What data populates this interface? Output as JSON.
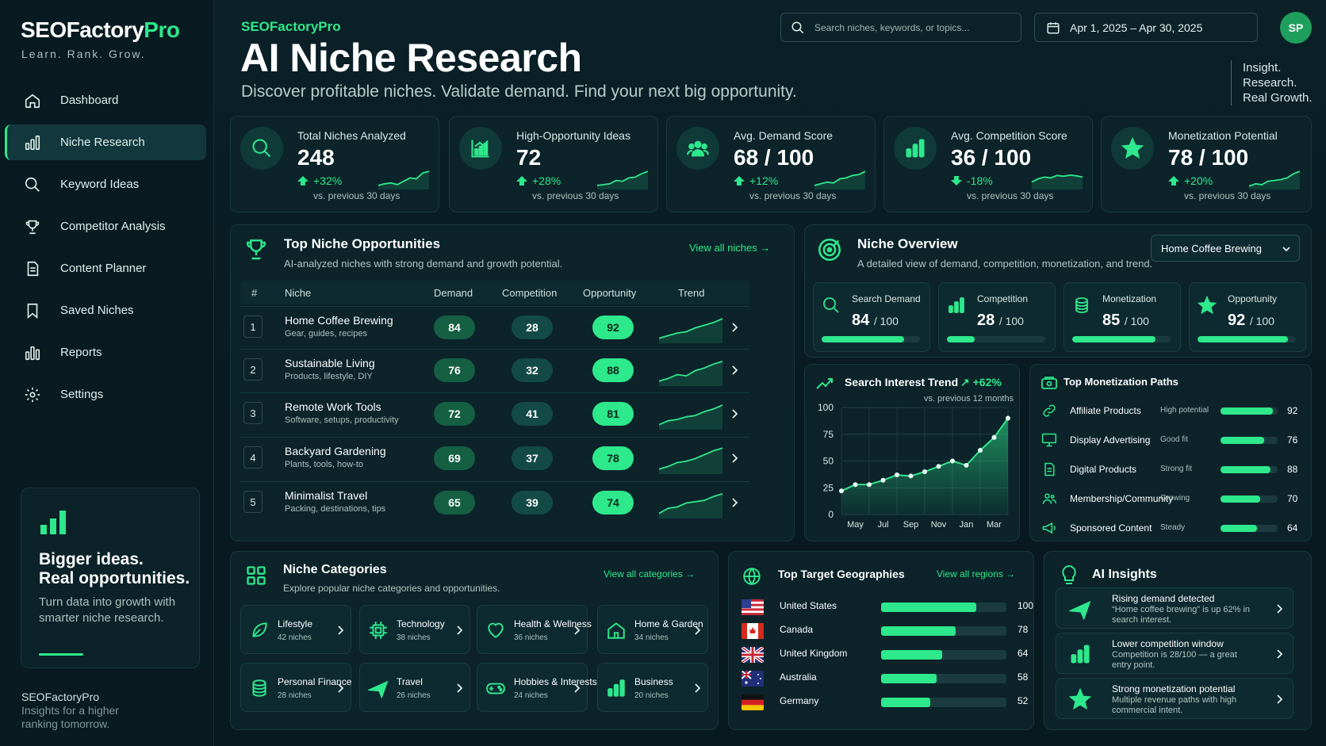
{
  "brand": {
    "name_main": "SEOFactory",
    "name_accent": "Pro",
    "tagline": "Learn. Rank. Grow."
  },
  "nav": [
    {
      "label": "Dashboard",
      "icon": "home-icon"
    },
    {
      "label": "Niche Research",
      "icon": "bar-chart-icon",
      "active": true
    },
    {
      "label": "Keyword Ideas",
      "icon": "search-icon"
    },
    {
      "label": "Competitor Analysis",
      "icon": "trophy-icon"
    },
    {
      "label": "Content Planner",
      "icon": "document-icon"
    },
    {
      "label": "Saved Niches",
      "icon": "bookmark-icon"
    },
    {
      "label": "Reports",
      "icon": "reports-icon"
    },
    {
      "label": "Settings",
      "icon": "gear-icon"
    }
  ],
  "promo": {
    "title_line1": "Bigger ideas.",
    "title_line2": "Real opportunities.",
    "text": "Turn data into growth with smarter niche research."
  },
  "sidebar_footer": {
    "name": "SEOFactoryPro",
    "line1": "Insights for a higher",
    "line2": "ranking tomorrow."
  },
  "header": {
    "brand": "SEOFactoryPro",
    "title": "AI Niche Research",
    "subtitle": "Discover profitable niches. Validate demand. Find your next big opportunity.",
    "search_placeholder": "Search niches, keywords, or topics...",
    "date_range": "Apr 1, 2025 – Apr 30, 2025",
    "avatar": "SP",
    "motto": [
      "Insight.",
      "Research.",
      "Real Growth."
    ]
  },
  "kpis": [
    {
      "label": "Total Niches Analyzed",
      "value": "248",
      "change": "+32%",
      "direction": "up",
      "note": "vs. previous 30 days",
      "icon": "search-icon"
    },
    {
      "label": "High-Opportunity Ideas",
      "value": "72",
      "change": "+28%",
      "direction": "up",
      "note": "vs. previous 30 days",
      "icon": "growth-chart-icon"
    },
    {
      "label": "Avg. Demand Score",
      "value": "68 / 100",
      "change": "+12%",
      "direction": "up",
      "note": "vs. previous 30 days",
      "icon": "users-icon"
    },
    {
      "label": "Avg. Competition Score",
      "value": "36 / 100",
      "change": "-18%",
      "direction": "down",
      "note": "vs. previous 30 days",
      "icon": "bar-chart-icon"
    },
    {
      "label": "Monetization Potential",
      "value": "78 / 100",
      "change": "+20%",
      "direction": "up",
      "note": "vs. previous 30 days",
      "icon": "star-icon"
    }
  ],
  "top_niches": {
    "title": "Top Niche Opportunities",
    "subtitle": "AI-analyzed niches with strong demand and growth potential.",
    "link": "View all niches",
    "columns": [
      "#",
      "Niche",
      "Demand",
      "Competition",
      "Opportunity",
      "Trend"
    ],
    "rows": [
      {
        "rank": "1",
        "name": "Home Coffee Brewing",
        "desc": "Gear, guides, recipes",
        "demand": "84",
        "competition": "28",
        "opportunity": "92"
      },
      {
        "rank": "2",
        "name": "Sustainable Living",
        "desc": "Products, lifestyle, DIY",
        "demand": "76",
        "competition": "32",
        "opportunity": "88"
      },
      {
        "rank": "3",
        "name": "Remote Work Tools",
        "desc": "Software, setups, productivity",
        "demand": "72",
        "competition": "41",
        "opportunity": "81"
      },
      {
        "rank": "4",
        "name": "Backyard Gardening",
        "desc": "Plants, tools, how-to",
        "demand": "69",
        "competition": "37",
        "opportunity": "78"
      },
      {
        "rank": "5",
        "name": "Minimalist Travel",
        "desc": "Packing, destinations, tips",
        "demand": "65",
        "competition": "39",
        "opportunity": "74"
      }
    ]
  },
  "overview": {
    "title": "Niche Overview",
    "subtitle": "A detailed view of demand, competition, monetization, and trend.",
    "selected": "Home Coffee Brewing",
    "metrics": [
      {
        "label": "Search Demand",
        "value": "84",
        "max": "/ 100",
        "pct": 84,
        "icon": "search-icon"
      },
      {
        "label": "Competition",
        "value": "28",
        "max": "/ 100",
        "pct": 28,
        "icon": "bar-chart-icon"
      },
      {
        "label": "Monetization",
        "value": "85",
        "max": "/ 100",
        "pct": 85,
        "icon": "coins-icon"
      },
      {
        "label": "Opportunity",
        "value": "92",
        "max": "/ 100",
        "pct": 92,
        "icon": "star-icon"
      }
    ]
  },
  "trend": {
    "title": "Search Interest Trend",
    "change": "+62%",
    "note": "vs. previous 12 months"
  },
  "chart_data": {
    "type": "area",
    "title": "Search Interest Trend",
    "x": [
      "Apr",
      "May",
      "Jun",
      "Jul",
      "Aug",
      "Sep",
      "Oct",
      "Nov",
      "Dec",
      "Jan",
      "Feb",
      "Mar",
      "Apr"
    ],
    "x_ticks": [
      "May",
      "Jul",
      "Sep",
      "Nov",
      "Jan",
      "Mar"
    ],
    "y_ticks": [
      "100",
      "75",
      "50",
      "25",
      "0"
    ],
    "values": [
      22,
      28,
      28,
      32,
      37,
      36,
      40,
      45,
      50,
      46,
      60,
      72,
      90
    ],
    "ylim": [
      0,
      100
    ],
    "grid": true
  },
  "monetization": {
    "title": "Top Monetization Paths",
    "rows": [
      {
        "label": "Affiliate Products",
        "tag": "High potential",
        "value": "92",
        "pct": 92,
        "icon": "link-icon"
      },
      {
        "label": "Display Advertising",
        "tag": "Good fit",
        "value": "76",
        "pct": 76,
        "icon": "monitor-icon"
      },
      {
        "label": "Digital Products",
        "tag": "Strong fit",
        "value": "88",
        "pct": 88,
        "icon": "document-icon"
      },
      {
        "label": "Membership/Community",
        "tag": "Growing",
        "value": "70",
        "pct": 70,
        "icon": "community-icon"
      },
      {
        "label": "Sponsored Content",
        "tag": "Steady",
        "value": "64",
        "pct": 64,
        "icon": "megaphone-icon"
      }
    ]
  },
  "categories": {
    "title": "Niche Categories",
    "subtitle": "Explore popular niche categories and opportunities.",
    "link": "View all categories",
    "items": [
      {
        "label": "Lifestyle",
        "count": "42 niches",
        "icon": "leaf-icon"
      },
      {
        "label": "Technology",
        "count": "38 niches",
        "icon": "chip-icon"
      },
      {
        "label": "Health & Wellness",
        "count": "36 niches",
        "icon": "heart-icon"
      },
      {
        "label": "Home & Garden",
        "count": "34 niches",
        "icon": "house-icon"
      },
      {
        "label": "Personal Finance",
        "count": "28 niches",
        "icon": "coins-icon"
      },
      {
        "label": "Travel",
        "count": "26 niches",
        "icon": "plane-icon"
      },
      {
        "label": "Hobbies & Interests",
        "count": "24 niches",
        "icon": "gamepad-icon"
      },
      {
        "label": "Business",
        "count": "20 niches",
        "icon": "bar-chart-icon"
      }
    ]
  },
  "geographies": {
    "title": "Top Target Geographies",
    "link": "View all regions",
    "rows": [
      {
        "country": "United States",
        "value": "100",
        "pct": 100,
        "flag": "us-flag-icon"
      },
      {
        "country": "Canada",
        "value": "78",
        "pct": 78,
        "flag": "ca-flag-icon"
      },
      {
        "country": "United Kingdom",
        "value": "64",
        "pct": 64,
        "flag": "uk-flag-icon"
      },
      {
        "country": "Australia",
        "value": "58",
        "pct": 58,
        "flag": "au-flag-icon"
      },
      {
        "country": "Germany",
        "value": "52",
        "pct": 52,
        "flag": "de-flag-icon"
      }
    ]
  },
  "insights": {
    "title": "AI Insights",
    "items": [
      {
        "title": "Rising demand detected",
        "text": "“Home coffee brewing” is up 62% in search interest.",
        "icon": "plane-icon"
      },
      {
        "title": "Lower competition window",
        "text": "Competition is 28/100 — a great entry point.",
        "icon": "bar-chart-icon"
      },
      {
        "title": "Strong monetization potential",
        "text": "Multiple revenue paths with high commercial intent.",
        "icon": "star-icon"
      }
    ]
  },
  "colors": {
    "accent": "#2ee88c",
    "background": "#071a1f",
    "card": "#0b2329"
  }
}
